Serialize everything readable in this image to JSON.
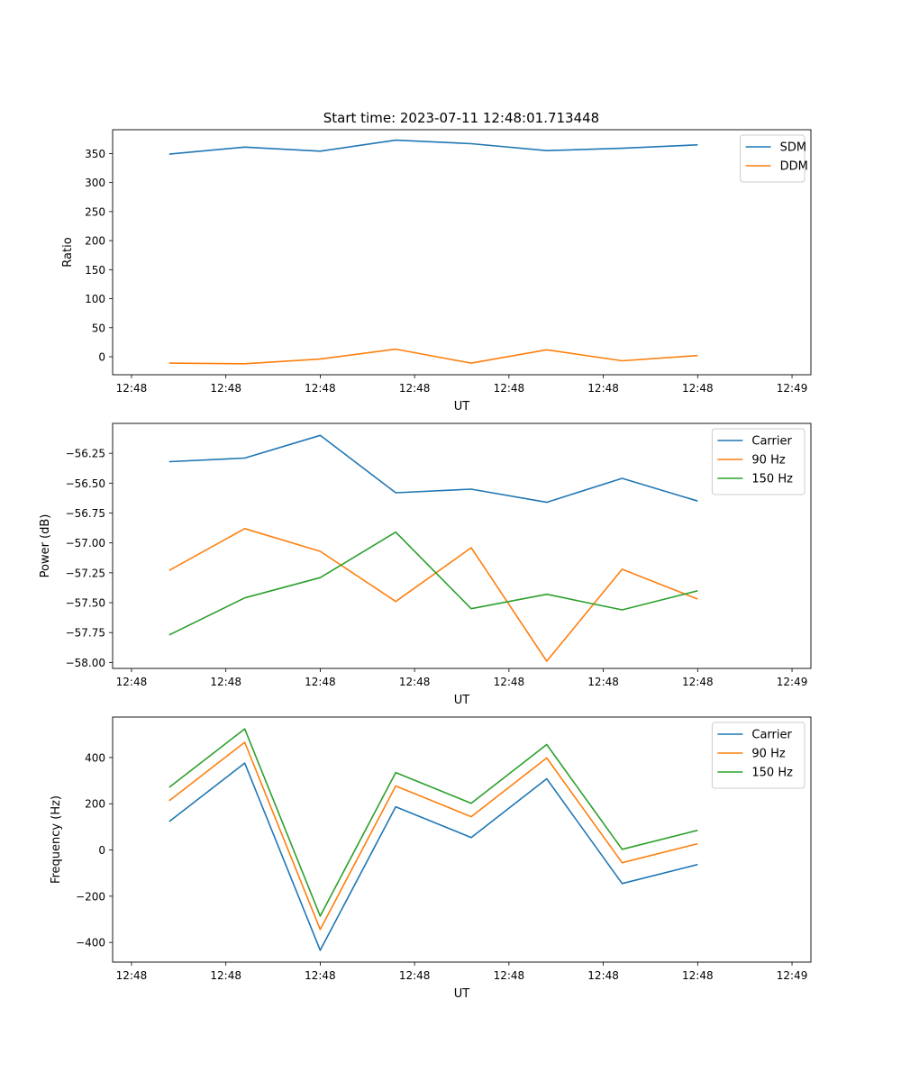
{
  "figure": {
    "title": "Start time: 2023-07-11 12:48:01.713448"
  },
  "chart_data": [
    {
      "type": "line",
      "title": "Start time: 2023-07-11 12:48:01.713448",
      "xlabel": "UT",
      "ylabel": "Ratio",
      "x_ticks": [
        "12:48",
        "12:48",
        "12:48",
        "12:48",
        "12:48",
        "12:48",
        "12:48"
      ],
      "x_tick_end": "12:49",
      "y_ticks": [
        "0",
        "50",
        "100",
        "150",
        "200",
        "250",
        "300",
        "350"
      ],
      "y_tick_values": [
        0,
        50,
        100,
        150,
        200,
        250,
        300,
        350
      ],
      "ylim": [
        -31,
        391
      ],
      "x_index_range": [
        -0.75,
        8.5
      ],
      "x": [
        0,
        1,
        2,
        3,
        4,
        5,
        6,
        7
      ],
      "legend_position": "top-right",
      "series": [
        {
          "name": "SDM",
          "color": "#1f77b4",
          "values": [
            349,
            361,
            354,
            373,
            367,
            355,
            359,
            365
          ]
        },
        {
          "name": "DDM",
          "color": "#ff7f0e",
          "values": [
            -11,
            -12,
            -4,
            13,
            -11,
            12,
            -7,
            2
          ]
        }
      ]
    },
    {
      "type": "line",
      "title": "",
      "xlabel": "UT",
      "ylabel": "Power (dB)",
      "x_ticks": [
        "12:48",
        "12:48",
        "12:48",
        "12:48",
        "12:48",
        "12:48",
        "12:48"
      ],
      "x_tick_end": "12:49",
      "y_ticks": [
        "−58.00",
        "−57.75",
        "−57.50",
        "−57.25",
        "−57.00",
        "−56.75",
        "−56.50",
        "−56.25"
      ],
      "y_tick_values": [
        -58.0,
        -57.75,
        -57.5,
        -57.25,
        -57.0,
        -56.75,
        -56.5,
        -56.25
      ],
      "ylim": [
        -58.05,
        -56.0
      ],
      "x_index_range": [
        -0.75,
        8.5
      ],
      "x": [
        0,
        1,
        2,
        3,
        4,
        5,
        6,
        7
      ],
      "legend_position": "top-right",
      "series": [
        {
          "name": "Carrier",
          "color": "#1f77b4",
          "values": [
            -56.32,
            -56.29,
            -56.1,
            -56.58,
            -56.55,
            -56.66,
            -56.46,
            -56.65
          ]
        },
        {
          "name": "90 Hz",
          "color": "#ff7f0e",
          "values": [
            -57.23,
            -56.88,
            -57.07,
            -57.49,
            -57.04,
            -57.99,
            -57.22,
            -57.47
          ]
        },
        {
          "name": "150 Hz",
          "color": "#2ca02c",
          "values": [
            -57.77,
            -57.46,
            -57.29,
            -56.91,
            -57.55,
            -57.43,
            -57.56,
            -57.4
          ]
        }
      ]
    },
    {
      "type": "line",
      "title": "",
      "xlabel": "UT",
      "ylabel": "Frequency (Hz)",
      "x_ticks": [
        "12:48",
        "12:48",
        "12:48",
        "12:48",
        "12:48",
        "12:48",
        "12:48"
      ],
      "x_tick_end": "12:49",
      "y_ticks": [
        "−400",
        "−200",
        "0",
        "200",
        "400"
      ],
      "y_tick_values": [
        -400,
        -200,
        0,
        200,
        400
      ],
      "ylim": [
        -485,
        575
      ],
      "x_index_range": [
        -0.75,
        8.5
      ],
      "x": [
        0,
        1,
        2,
        3,
        4,
        5,
        6,
        7
      ],
      "legend_position": "top-right",
      "series": [
        {
          "name": "Carrier",
          "color": "#1f77b4",
          "values": [
            123,
            376,
            -434,
            187,
            54,
            308,
            -145,
            -63
          ]
        },
        {
          "name": "90 Hz",
          "color": "#ff7f0e",
          "values": [
            213,
            466,
            -344,
            277,
            144,
            398,
            -55,
            27
          ]
        },
        {
          "name": "150 Hz",
          "color": "#2ca02c",
          "values": [
            271,
            524,
            -286,
            335,
            202,
            456,
            3,
            85
          ]
        }
      ]
    }
  ]
}
